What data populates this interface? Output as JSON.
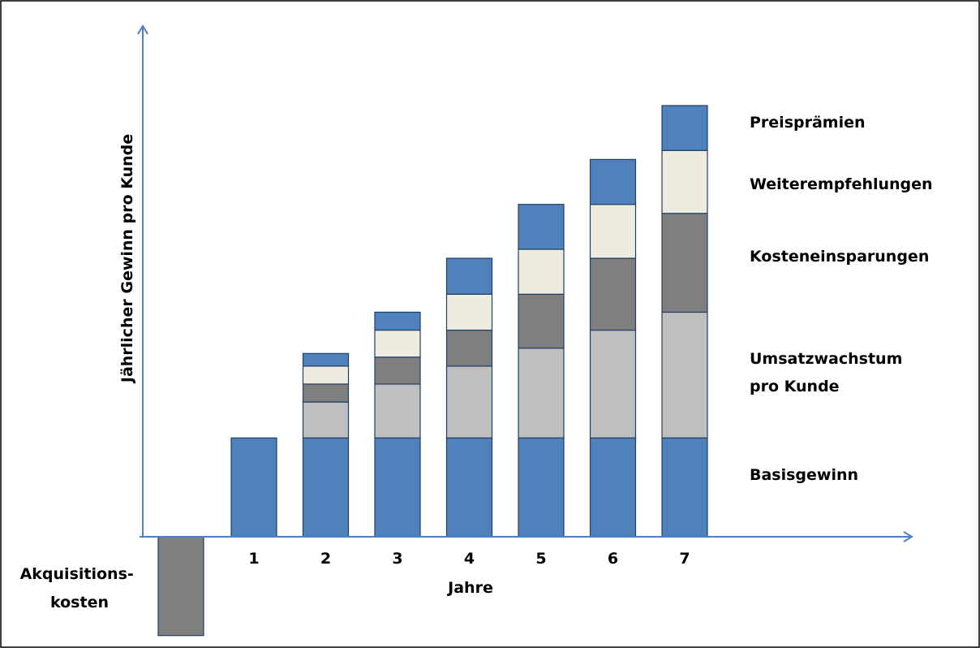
{
  "chart_data": {
    "type": "bar",
    "stacked": true,
    "xlabel": "Jahre",
    "ylabel": "Jährlicher Gewinn pro Kunde",
    "pre_category": {
      "label_lines": [
        "Akquisitions-",
        "kosten"
      ],
      "value": -55
    },
    "categories": [
      "1",
      "2",
      "3",
      "4",
      "5",
      "6",
      "7"
    ],
    "series": [
      {
        "name": "Basisgewinn",
        "color": "#4f81bd",
        "values": [
          55,
          55,
          55,
          55,
          55,
          55,
          55
        ]
      },
      {
        "name_lines": [
          "Umsatzwachstum",
          "pro Kunde"
        ],
        "color": "#bfbfbf",
        "values": [
          0,
          20,
          30,
          40,
          50,
          60,
          70
        ]
      },
      {
        "name": "Kosteneinsparungen",
        "color": "#7f7f7f",
        "values": [
          0,
          10,
          15,
          20,
          30,
          40,
          55
        ]
      },
      {
        "name": "Weiterempfehlungen",
        "color": "#eeece1",
        "values": [
          0,
          10,
          15,
          20,
          25,
          30,
          35
        ]
      },
      {
        "name": "Preisprämien",
        "color": "#4f81bd",
        "values": [
          0,
          7,
          10,
          20,
          25,
          25,
          25
        ]
      }
    ],
    "ylim": [
      -55,
      240
    ],
    "grid": false,
    "legend_position": "right"
  }
}
